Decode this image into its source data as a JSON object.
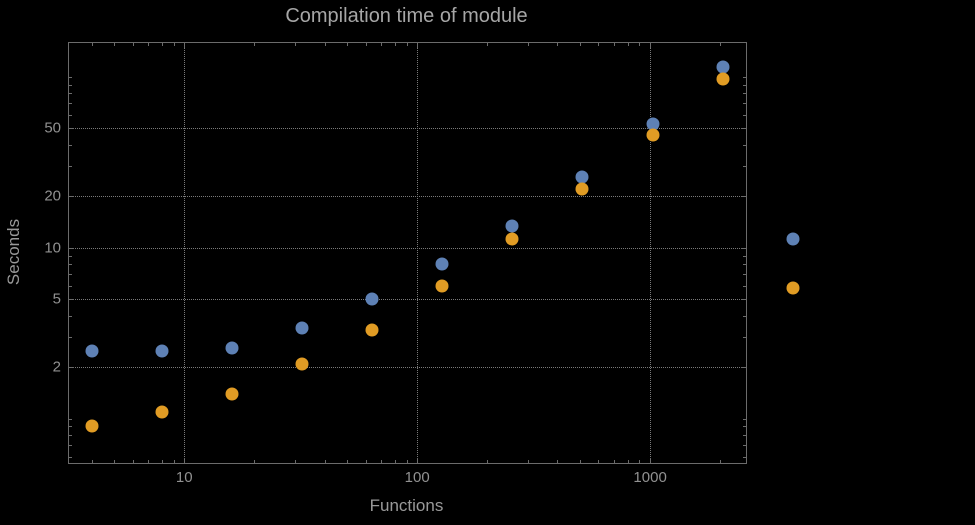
{
  "chart_data": {
    "type": "scatter",
    "title": "Compilation time of module",
    "xlabel": "Functions",
    "ylabel": "Seconds",
    "x_scale": "log",
    "y_scale": "log",
    "x": [
      4,
      8,
      16,
      32,
      64,
      128,
      256,
      512,
      1024,
      2048,
      4096
    ],
    "series": [
      {
        "name": "blue",
        "color": "#5e81b5",
        "values": [
          2.5,
          2.5,
          2.6,
          3.4,
          5.0,
          8.0,
          13.5,
          26,
          53,
          115,
          11.3
        ]
      },
      {
        "name": "orange",
        "color": "#e19c24",
        "values": [
          0.9,
          1.1,
          1.4,
          2.1,
          3.3,
          6.0,
          11.2,
          22,
          46,
          97,
          5.8
        ]
      }
    ],
    "xlim": [
      3.2,
      2580
    ],
    "ylim": [
      0.55,
      158
    ],
    "xticks": [
      10,
      100,
      1000
    ],
    "yticks": [
      2,
      5,
      10,
      20,
      50
    ],
    "grid": "dotted",
    "legend": "none",
    "colors": {
      "background": "#000000",
      "frame": "#6b6b6b",
      "gridline": "#7a7a7a",
      "title_text": "#a6a6a6",
      "label_text": "#999999",
      "tick_text": "#919191"
    }
  }
}
